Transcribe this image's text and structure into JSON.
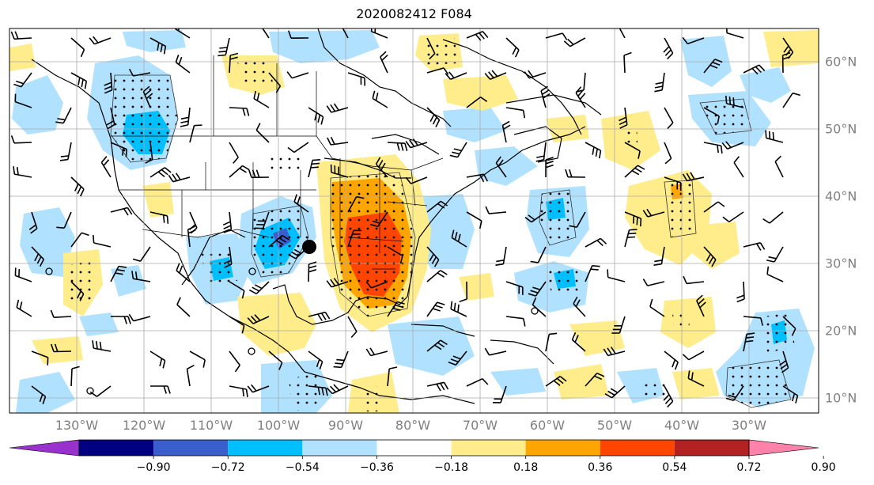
{
  "title": "2020082412 F084",
  "lon_labels": [
    "130°W",
    "120°W",
    "110°W",
    "100°W",
    "90°W",
    "80°W",
    "70°W",
    "60°W",
    "50°W",
    "40°W",
    "30°W"
  ],
  "lat_labels": [
    "60°N",
    "50°N",
    "40°N",
    "30°N",
    "20°N",
    "10°N"
  ],
  "colorbar": {
    "colors": [
      "#9932cc",
      "#000080",
      "#3a5fcd",
      "#00bfff",
      "#b0e2ff",
      "#ffffff",
      "#ffec8b",
      "#ffa500",
      "#ff4500",
      "#b22222",
      "#ff82ab"
    ],
    "tick_labels": [
      "−0.90",
      "−0.72",
      "−0.54",
      "−0.36",
      "−0.18",
      "0.18",
      "0.36",
      "0.54",
      "0.72",
      "0.90"
    ]
  },
  "legend_colors": {
    "light_blue": "#b0e2ff",
    "blue": "#00bfff",
    "mid_blue": "#3a5fcd",
    "light_yellow": "#ffec8b",
    "orange": "#ffa500",
    "red_orange": "#ff4500"
  },
  "markers": [
    {
      "name": "storm-center-dot",
      "lon": -94.2,
      "lat": 32.7
    }
  ]
}
